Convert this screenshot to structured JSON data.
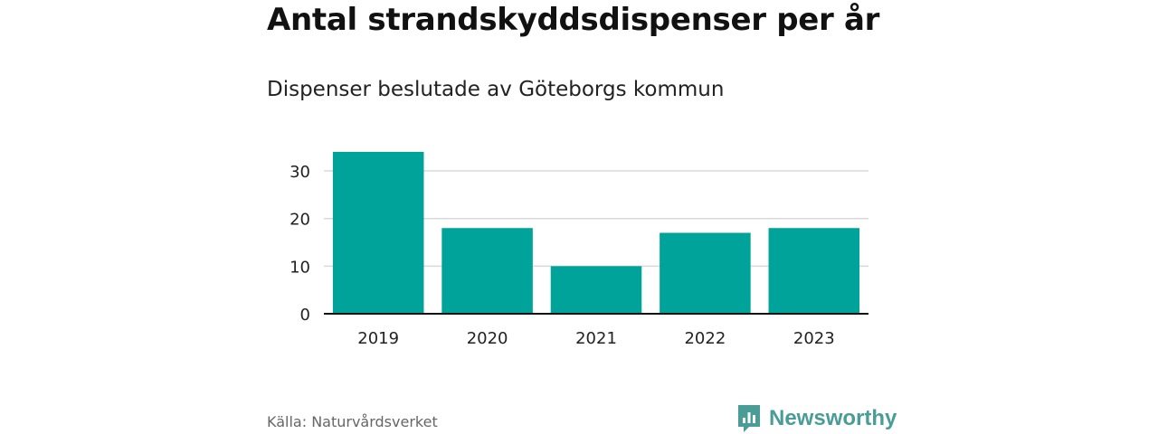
{
  "header": {
    "title": "Antal strandskyddsdispenser per år",
    "subtitle": "Dispenser beslutade av Göteborgs kommun"
  },
  "footer": {
    "source": "Källa: Naturvårdsverket",
    "brand": "Newsworthy",
    "brand_icon": "bar-chart-icon"
  },
  "colors": {
    "bar": "#00a39a",
    "grid": "#d9d9d9",
    "axis": "#111111",
    "brand": "#4a9c97"
  },
  "chart_data": {
    "type": "bar",
    "title": "Antal strandskyddsdispenser per år",
    "subtitle": "Dispenser beslutade av Göteborgs kommun",
    "categories": [
      "2019",
      "2020",
      "2021",
      "2022",
      "2023"
    ],
    "values": [
      34,
      18,
      10,
      17,
      18
    ],
    "xlabel": "",
    "ylabel": "",
    "ylim": [
      0,
      34
    ],
    "yticks": [
      0,
      10,
      20,
      30
    ],
    "grid": true
  }
}
